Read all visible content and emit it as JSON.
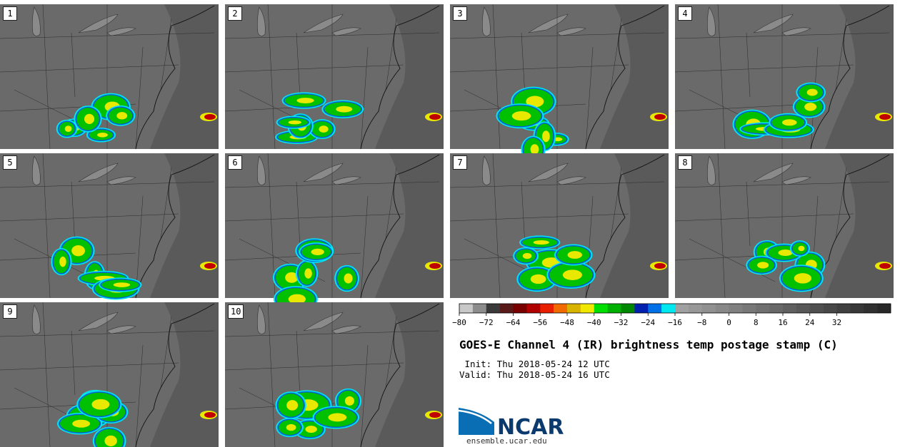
{
  "panels": [
    {
      "label": "1"
    },
    {
      "label": "2"
    },
    {
      "label": "3"
    },
    {
      "label": "4"
    },
    {
      "label": "5"
    },
    {
      "label": "6"
    },
    {
      "label": "7"
    },
    {
      "label": "8"
    },
    {
      "label": "9"
    },
    {
      "label": "10"
    }
  ],
  "colorbar": {
    "colors": [
      "#c8c8c8",
      "#8c8c8c",
      "#3a3a3a",
      "#5a1a1a",
      "#7a0000",
      "#b00000",
      "#e82000",
      "#f06a00",
      "#d8b400",
      "#f0e800",
      "#00e000",
      "#00b000",
      "#008800",
      "#0020b0",
      "#0070e8",
      "#00e8f0",
      "#a0a0a0",
      "#989898",
      "#909090",
      "#888888",
      "#808080",
      "#787878",
      "#707070",
      "#686868",
      "#606060",
      "#585858",
      "#505050",
      "#484848",
      "#404040",
      "#383838",
      "#303030",
      "#282828"
    ],
    "ticks": [
      "−80",
      "−72",
      "−64",
      "−56",
      "−48",
      "−40",
      "−32",
      "−24",
      "−16",
      "−8",
      "0",
      "8",
      "16",
      "24",
      "32"
    ]
  },
  "title": "GOES-E Channel 4 (IR) brightness temp postage stamp (C)",
  "init": " Init: Thu 2018-05-24 12 UTC",
  "valid": "Valid: Thu 2018-05-24 16 UTC",
  "logo_text": "NCAR",
  "url": "ensemble.ucar.edu"
}
